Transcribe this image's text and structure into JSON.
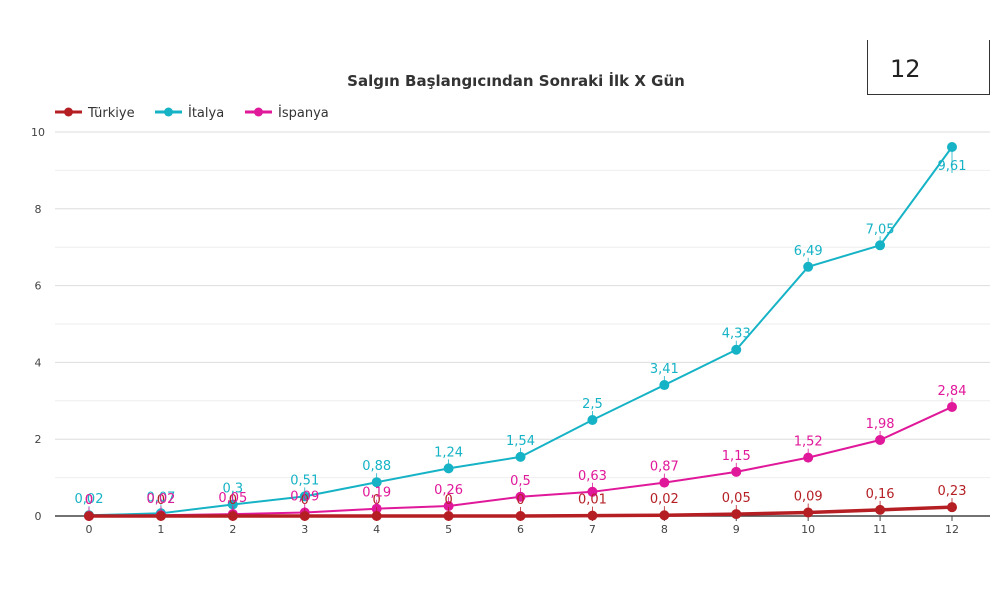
{
  "day_counter": "12",
  "chart_data": {
    "type": "line",
    "title": "Salgın Başlangıcından Sonraki İlk X Gün",
    "xlabel": "",
    "ylabel": "",
    "x": [
      0,
      1,
      2,
      3,
      4,
      5,
      6,
      7,
      8,
      9,
      10,
      11,
      12
    ],
    "ylim": [
      0,
      10
    ],
    "yticks": [
      0,
      2,
      4,
      6,
      8,
      10
    ],
    "grid": true,
    "legend_position": "top-left",
    "series": [
      {
        "name": "Türkiye",
        "color": "#b51f24",
        "values": [
          0,
          0,
          0,
          0,
          0,
          0,
          0,
          0.01,
          0.02,
          0.05,
          0.09,
          0.16,
          0.23
        ],
        "labels": [
          "0",
          "0",
          "0",
          "0",
          "0",
          "0",
          "0",
          "0,01",
          "0,02",
          "0,05",
          "0,09",
          "0,16",
          "0,23"
        ]
      },
      {
        "name": "İtalya",
        "color": "#16b3c6",
        "values": [
          0.02,
          0.07,
          0.3,
          0.51,
          0.88,
          1.24,
          1.54,
          2.5,
          3.41,
          4.33,
          6.49,
          7.05,
          9.61
        ],
        "labels": [
          "0,02",
          "0,07",
          "0,3",
          "0,51",
          "0,88",
          "1,24",
          "1,54",
          "2,5",
          "3,41",
          "4,33",
          "6,49",
          "7,05",
          "9,61"
        ]
      },
      {
        "name": "İspanya",
        "color": "#e0189a",
        "values": [
          0,
          0.02,
          0.05,
          0.09,
          0.19,
          0.26,
          0.5,
          0.63,
          0.87,
          1.15,
          1.52,
          1.98,
          2.84
        ],
        "labels": [
          "0",
          "0,02",
          "0,05",
          "0,09",
          "0,19",
          "0,26",
          "0,5",
          "0,63",
          "0,87",
          "1,15",
          "1,52",
          "1,98",
          "2,84"
        ]
      }
    ]
  }
}
